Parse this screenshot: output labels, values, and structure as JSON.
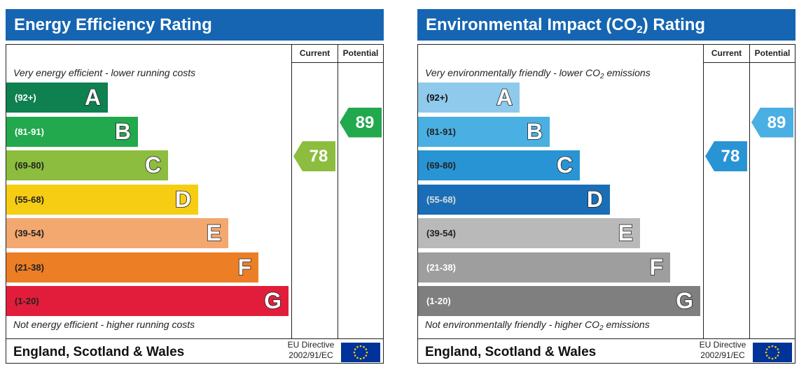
{
  "chart_data": [
    {
      "type": "bar",
      "title_main": "Energy Efficiency Rating",
      "title_sub": "",
      "title_tail": "",
      "columns": [
        "Current",
        "Potential"
      ],
      "caption_top": "Very energy efficient - lower running costs",
      "caption_top_sub": "",
      "caption_top_tail": "",
      "caption_bottom": "Not energy efficient - higher running costs",
      "caption_bottom_sub": "",
      "caption_bottom_tail": "",
      "bands": [
        {
          "range": "(92+)",
          "letter": "A",
          "color": "#0f8050",
          "text_color": "#ffffff"
        },
        {
          "range": "(81-91)",
          "letter": "B",
          "color": "#22a84d",
          "text_color": "#ffffff"
        },
        {
          "range": "(69-80)",
          "letter": "C",
          "color": "#8dbd3e",
          "text_color": "#222222"
        },
        {
          "range": "(55-68)",
          "letter": "D",
          "color": "#f6cd13",
          "text_color": "#222222"
        },
        {
          "range": "(39-54)",
          "letter": "E",
          "color": "#f2a86f",
          "text_color": "#222222"
        },
        {
          "range": "(21-38)",
          "letter": "F",
          "color": "#ec7e26",
          "text_color": "#222222"
        },
        {
          "range": "(1-20)",
          "letter": "G",
          "color": "#e21d3b",
          "text_color": "#222222"
        }
      ],
      "current": {
        "value": "78",
        "band": "C",
        "color": "#8dbd3e"
      },
      "potential": {
        "value": "89",
        "band": "B",
        "color": "#22a84d"
      },
      "footer": "England, Scotland & Wales",
      "directive_line1": "EU Directive",
      "directive_line2": "2002/91/EC"
    },
    {
      "type": "bar",
      "title_main": "Environmental Impact (CO",
      "title_sub": "2",
      "title_tail": ") Rating",
      "columns": [
        "Current",
        "Potential"
      ],
      "caption_top": "Very environmentally friendly - lower CO",
      "caption_top_sub": "2",
      "caption_top_tail": " emissions",
      "caption_bottom": "Not environmentally friendly - higher CO",
      "caption_bottom_sub": "2",
      "caption_bottom_tail": " emissions",
      "bands": [
        {
          "range": "(92+)",
          "letter": "A",
          "color": "#8fc9ec",
          "text_color": "#111111"
        },
        {
          "range": "(81-91)",
          "letter": "B",
          "color": "#4aafe2",
          "text_color": "#222222"
        },
        {
          "range": "(69-80)",
          "letter": "C",
          "color": "#2994d4",
          "text_color": "#222222"
        },
        {
          "range": "(55-68)",
          "letter": "D",
          "color": "#1a6eb7",
          "text_color": "#dddddd"
        },
        {
          "range": "(39-54)",
          "letter": "E",
          "color": "#b9b9b9",
          "text_color": "#222222"
        },
        {
          "range": "(21-38)",
          "letter": "F",
          "color": "#9e9e9e",
          "text_color": "#ffffff"
        },
        {
          "range": "(1-20)",
          "letter": "G",
          "color": "#7f7f7f",
          "text_color": "#ffffff"
        }
      ],
      "current": {
        "value": "78",
        "band": "C",
        "color": "#2994d4"
      },
      "potential": {
        "value": "89",
        "band": "B",
        "color": "#4aafe2"
      },
      "footer": "England, Scotland & Wales",
      "directive_line1": "EU Directive",
      "directive_line2": "2002/91/EC"
    }
  ],
  "colors": {
    "header_bg": "#1565b2",
    "eu_flag_bg": "#003399",
    "eu_star": "#ffcc00"
  }
}
